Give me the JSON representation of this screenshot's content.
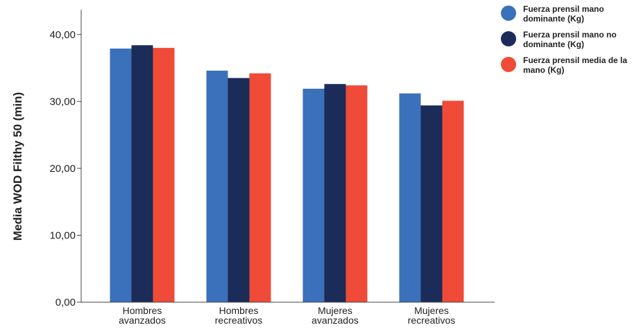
{
  "chart_data": {
    "type": "bar",
    "title": "",
    "xlabel": "",
    "ylabel": "Media WOD Filthy  50 (min)",
    "ylim": [
      0,
      43.5
    ],
    "yticks": [
      "0,00",
      "10,00",
      "20,00",
      "30,00",
      "40,00"
    ],
    "categories": [
      [
        "Hombres",
        "avanzados"
      ],
      [
        "Hombres",
        "recreativos"
      ],
      [
        "Mujeres",
        "avanzados"
      ],
      [
        "Mujeres",
        "recreativos"
      ]
    ],
    "series": [
      {
        "name": "Fuerza prensil mano dominante (Kg)",
        "color": "#3b70ba",
        "values": [
          37.9,
          34.6,
          31.9,
          31.2
        ]
      },
      {
        "name": "Fuerza prensil mano no dominante (Kg)",
        "color": "#1b2c59",
        "values": [
          38.4,
          33.5,
          32.6,
          29.4
        ]
      },
      {
        "name": "Fuerza prensil media de la mano (Kg)",
        "color": "#ef4b38",
        "values": [
          38.0,
          34.2,
          32.4,
          30.1
        ]
      }
    ],
    "grid": false,
    "legend_position": "top-right"
  }
}
